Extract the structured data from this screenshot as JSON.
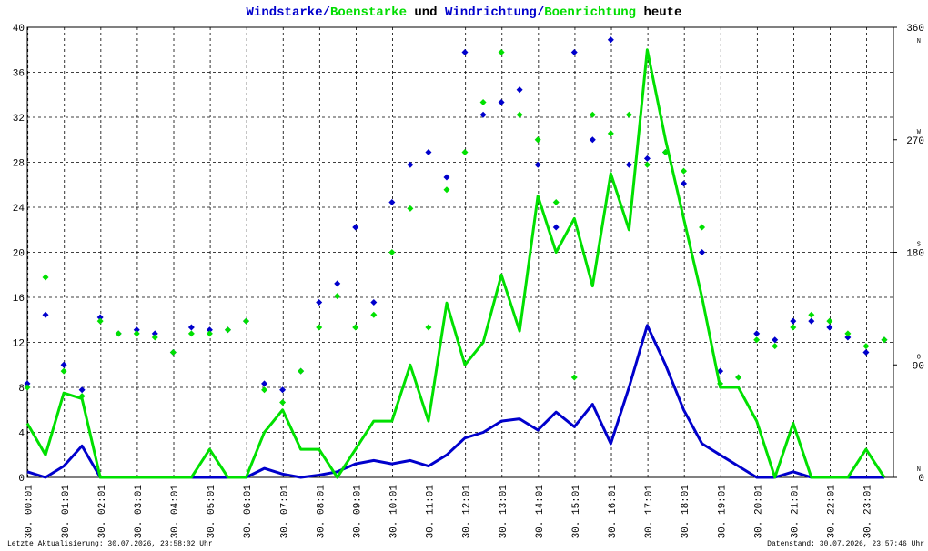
{
  "chart_data": {
    "type": "line",
    "title_parts": [
      {
        "text": "Windstarke",
        "color": "#0000cc"
      },
      {
        "text": "/",
        "color": "#0000cc"
      },
      {
        "text": "Boenstarke",
        "color": "#00dd00"
      },
      {
        "text": " und ",
        "color": "#000000"
      },
      {
        "text": "Windrichtung",
        "color": "#0000cc"
      },
      {
        "text": "/",
        "color": "#0000cc"
      },
      {
        "text": "Boenrichtung",
        "color": "#00dd00"
      },
      {
        "text": " heute",
        "color": "#000000"
      }
    ],
    "footer_left": "Letzte Aktualisierung: 30.07.2026, 23:58:02 Uhr",
    "footer_right": "Datenstand: 30.07.2026, 23:57:46 Uhr",
    "x": [
      0,
      0.5,
      1,
      1.5,
      2,
      2.5,
      3,
      3.5,
      4,
      4.5,
      5,
      5.5,
      6,
      6.5,
      7,
      7.5,
      8,
      8.5,
      9,
      9.5,
      10,
      10.5,
      11,
      11.5,
      12,
      12.5,
      13,
      13.5,
      14,
      14.5,
      15,
      15.5,
      16,
      16.5,
      17,
      17.5,
      18,
      18.5,
      19,
      19.5,
      20,
      20.5,
      21,
      21.5,
      22,
      22.5,
      23,
      23.5
    ],
    "series": [
      {
        "name": "Windstarke",
        "color": "#0000cc",
        "axis": "y",
        "kind": "line",
        "values": [
          0.5,
          0,
          1,
          2.8,
          0,
          0,
          0,
          0,
          0,
          0,
          0,
          0,
          0,
          0.8,
          0.3,
          0,
          0.2,
          0.5,
          1.2,
          1.5,
          1.2,
          1.5,
          1,
          2,
          3.5,
          4,
          5,
          5.2,
          4.2,
          5.8,
          4.5,
          6.5,
          3,
          8,
          13.5,
          10,
          6,
          3,
          2,
          1,
          0,
          0,
          0.5,
          0,
          0,
          0,
          0,
          0
        ]
      },
      {
        "name": "Boenstarke",
        "color": "#00e000",
        "axis": "y",
        "kind": "line",
        "values": [
          4.8,
          2,
          7.5,
          7,
          0,
          0,
          0,
          0,
          0,
          0,
          2.5,
          0,
          0,
          4,
          6,
          2.5,
          2.5,
          0,
          2.5,
          5,
          5,
          10,
          5,
          15.5,
          10,
          12,
          18,
          13,
          25,
          20,
          23,
          17,
          27,
          22,
          38,
          30,
          23,
          16,
          8,
          8,
          5,
          0,
          4.8,
          0,
          0,
          0,
          2.5,
          0
        ]
      },
      {
        "name": "Windrichtung",
        "color": "#0000cc",
        "axis": "y2",
        "kind": "scatter",
        "values": [
          75,
          130,
          90,
          70,
          128,
          115,
          118,
          115,
          100,
          120,
          118,
          118,
          125,
          75,
          70,
          85,
          140,
          155,
          200,
          140,
          220,
          250,
          260,
          240,
          340,
          290,
          300,
          310,
          250,
          200,
          340,
          270,
          350,
          250,
          255,
          260,
          235,
          180,
          85,
          80,
          115,
          110,
          125,
          125,
          120,
          112,
          100,
          110
        ]
      },
      {
        "name": "Boenrichtung",
        "color": "#00e000",
        "axis": "y2",
        "kind": "scatter",
        "values": [
          72,
          160,
          85,
          65,
          125,
          115,
          115,
          112,
          100,
          115,
          115,
          118,
          125,
          70,
          60,
          85,
          120,
          145,
          120,
          130,
          180,
          215,
          120,
          230,
          260,
          300,
          340,
          290,
          270,
          220,
          80,
          290,
          275,
          290,
          250,
          260,
          245,
          200,
          75,
          80,
          110,
          105,
          120,
          130,
          125,
          115,
          105,
          110
        ]
      }
    ],
    "xlim": [
      0,
      23.75
    ],
    "xticks": [
      {
        "value": 0.0167,
        "label": "30. 00:01"
      },
      {
        "value": 1.0167,
        "label": "30. 01:01"
      },
      {
        "value": 2.0167,
        "label": "30. 02:01"
      },
      {
        "value": 3.0167,
        "label": "30. 03:01"
      },
      {
        "value": 4.0167,
        "label": "30. 04:01"
      },
      {
        "value": 5.0167,
        "label": "30. 05:01"
      },
      {
        "value": 6.0167,
        "label": "30. 06:01"
      },
      {
        "value": 7.0167,
        "label": "30. 07:01"
      },
      {
        "value": 8.0167,
        "label": "30. 08:01"
      },
      {
        "value": 9.0167,
        "label": "30. 09:01"
      },
      {
        "value": 10.0167,
        "label": "30. 10:01"
      },
      {
        "value": 11.0167,
        "label": "30. 11:01"
      },
      {
        "value": 12.0167,
        "label": "30. 12:01"
      },
      {
        "value": 13.0167,
        "label": "30. 13:01"
      },
      {
        "value": 14.0167,
        "label": "30. 14:01"
      },
      {
        "value": 15.0167,
        "label": "30. 15:01"
      },
      {
        "value": 16.0167,
        "label": "30. 16:01"
      },
      {
        "value": 17.0167,
        "label": "30. 17:01"
      },
      {
        "value": 18.0167,
        "label": "30. 18:01"
      },
      {
        "value": 19.0167,
        "label": "30. 19:01"
      },
      {
        "value": 20.0167,
        "label": "30. 20:01"
      },
      {
        "value": 21.0167,
        "label": "30. 21:01"
      },
      {
        "value": 22.0167,
        "label": "30. 22:01"
      },
      {
        "value": 23.0167,
        "label": "30. 23:01"
      }
    ],
    "ylim": [
      0,
      40
    ],
    "yticks": [
      0,
      4,
      8,
      12,
      16,
      20,
      24,
      28,
      32,
      36,
      40
    ],
    "y2lim": [
      0,
      360
    ],
    "y2ticks": [
      0,
      90,
      180,
      270,
      360
    ],
    "y2tick_compass": [
      "N",
      "O",
      "S",
      "W",
      "N"
    ],
    "grid": true
  }
}
